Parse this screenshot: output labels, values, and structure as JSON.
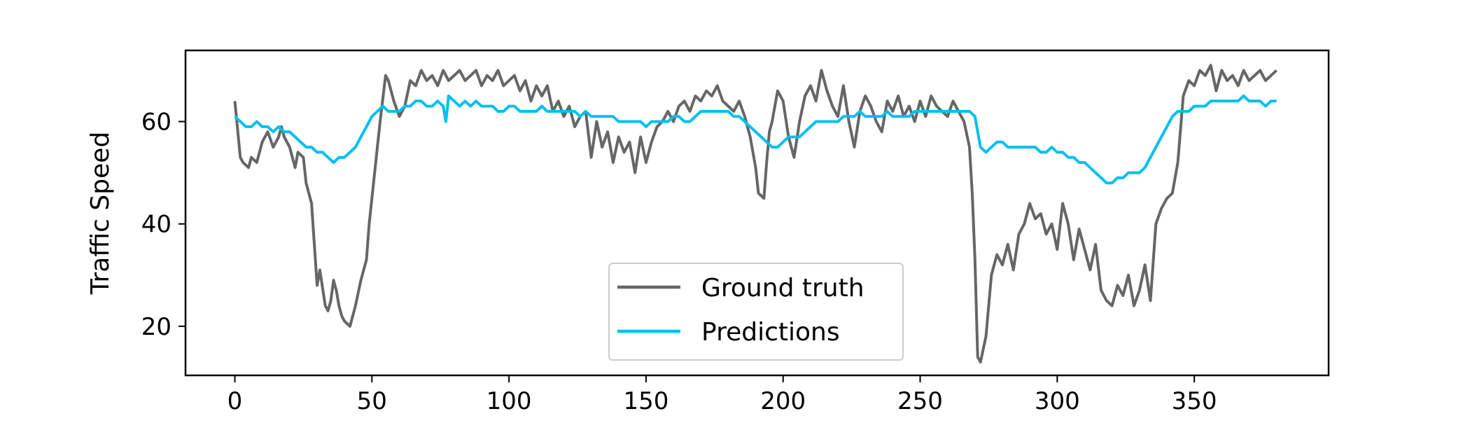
{
  "chart_data": {
    "type": "line",
    "title": "",
    "xlabel": "",
    "ylabel": "Traffic Speed",
    "xlim": [
      -18,
      399
    ],
    "ylim": [
      10.4,
      73.9
    ],
    "xticks": [
      0,
      50,
      100,
      150,
      200,
      250,
      300,
      350
    ],
    "yticks": [
      20,
      40,
      60
    ],
    "grid": false,
    "legend": {
      "placement": "lower-center"
    },
    "series": [
      {
        "name": "Ground truth",
        "color": "#666666",
        "x": [
          0,
          2,
          3,
          5,
          6,
          8,
          10,
          12,
          14,
          16,
          17,
          18,
          20,
          22,
          23,
          25,
          26,
          28,
          30,
          31,
          33,
          34,
          35,
          36,
          37,
          38,
          39,
          40,
          42,
          44,
          46,
          48,
          49,
          50,
          52,
          53,
          55,
          56,
          58,
          60,
          62,
          64,
          66,
          68,
          70,
          72,
          74,
          76,
          78,
          80,
          82,
          84,
          86,
          88,
          90,
          92,
          94,
          96,
          98,
          100,
          102,
          104,
          106,
          108,
          110,
          112,
          114,
          116,
          118,
          120,
          122,
          124,
          126,
          128,
          130,
          132,
          134,
          136,
          138,
          140,
          142,
          144,
          146,
          148,
          150,
          152,
          154,
          156,
          158,
          160,
          162,
          164,
          166,
          168,
          170,
          172,
          174,
          176,
          178,
          180,
          182,
          184,
          186,
          188,
          190,
          191,
          193,
          194,
          195,
          196,
          198,
          200,
          202,
          204,
          206,
          208,
          210,
          212,
          214,
          216,
          218,
          220,
          222,
          224,
          226,
          228,
          230,
          232,
          234,
          236,
          238,
          240,
          242,
          244,
          246,
          248,
          250,
          252,
          254,
          256,
          258,
          260,
          262,
          264,
          266,
          268,
          269,
          270,
          271,
          272,
          274,
          276,
          278,
          280,
          282,
          284,
          286,
          288,
          290,
          292,
          294,
          296,
          298,
          300,
          302,
          304,
          306,
          308,
          310,
          312,
          314,
          316,
          318,
          320,
          322,
          324,
          326,
          328,
          330,
          332,
          334,
          336,
          338,
          340,
          342,
          344,
          346,
          348,
          350,
          352,
          354,
          356,
          358,
          360,
          362,
          364,
          366,
          368,
          370,
          372,
          374,
          376,
          378,
          380
        ],
        "y": [
          64,
          53,
          52,
          51,
          53,
          52,
          56,
          58,
          55,
          57,
          59,
          57,
          55,
          51,
          54,
          53,
          48,
          44,
          28,
          31,
          24,
          23,
          25,
          29,
          27,
          24,
          22,
          21,
          20,
          24,
          29,
          33,
          40,
          45,
          55,
          60,
          69,
          68,
          64,
          61,
          63,
          68,
          67,
          70,
          68,
          69,
          67,
          70,
          68,
          69,
          70,
          68,
          69,
          70,
          67,
          69,
          68,
          70,
          67,
          68,
          69,
          66,
          68,
          64,
          67,
          65,
          67,
          62,
          64,
          61,
          63,
          59,
          61,
          62,
          53,
          60,
          55,
          58,
          52,
          57,
          54,
          56,
          50,
          57,
          52,
          56,
          59,
          60,
          62,
          60,
          63,
          64,
          62,
          65,
          64,
          66,
          65,
          67,
          64,
          63,
          62,
          64,
          61,
          57,
          51,
          46,
          45,
          52,
          58,
          60,
          66,
          64,
          57,
          53,
          60,
          65,
          67,
          64,
          70,
          66,
          63,
          61,
          67,
          60,
          55,
          62,
          65,
          63,
          60,
          58,
          64,
          62,
          65,
          61,
          63,
          60,
          64,
          61,
          65,
          63,
          62,
          61,
          64,
          62,
          60,
          55,
          46,
          33,
          14,
          13,
          18,
          30,
          34,
          32,
          36,
          31,
          38,
          40,
          44,
          41,
          42,
          38,
          40,
          35,
          44,
          40,
          33,
          39,
          35,
          31,
          36,
          27,
          25,
          24,
          28,
          26,
          30,
          24,
          27,
          32,
          25,
          40,
          43,
          45,
          46,
          52,
          65,
          68,
          67,
          70,
          69,
          71,
          66,
          70,
          68,
          69,
          67,
          70,
          68,
          69,
          70,
          68,
          69,
          70
        ]
      },
      {
        "name": "Predictions",
        "color": "#00BFEF",
        "x": [
          0,
          2,
          4,
          6,
          8,
          10,
          12,
          14,
          16,
          18,
          20,
          22,
          24,
          26,
          28,
          30,
          32,
          34,
          36,
          38,
          40,
          42,
          44,
          46,
          48,
          50,
          52,
          54,
          56,
          58,
          60,
          62,
          64,
          66,
          68,
          70,
          72,
          74,
          76,
          77,
          78,
          80,
          82,
          84,
          86,
          88,
          90,
          92,
          94,
          96,
          98,
          100,
          102,
          104,
          106,
          108,
          110,
          112,
          114,
          116,
          118,
          120,
          122,
          124,
          126,
          128,
          130,
          132,
          134,
          136,
          138,
          140,
          142,
          144,
          146,
          148,
          150,
          152,
          154,
          156,
          158,
          160,
          162,
          164,
          166,
          168,
          170,
          172,
          174,
          176,
          178,
          180,
          182,
          184,
          186,
          188,
          190,
          192,
          194,
          196,
          198,
          200,
          202,
          204,
          206,
          208,
          210,
          212,
          214,
          216,
          218,
          220,
          222,
          224,
          226,
          228,
          230,
          232,
          234,
          236,
          238,
          240,
          242,
          244,
          246,
          248,
          250,
          252,
          254,
          256,
          258,
          260,
          262,
          264,
          266,
          268,
          270,
          272,
          274,
          276,
          278,
          280,
          282,
          284,
          286,
          288,
          290,
          292,
          294,
          296,
          298,
          300,
          302,
          304,
          306,
          308,
          310,
          312,
          314,
          316,
          318,
          320,
          322,
          324,
          326,
          328,
          330,
          332,
          334,
          336,
          338,
          340,
          342,
          344,
          346,
          348,
          350,
          352,
          354,
          356,
          358,
          360,
          362,
          364,
          366,
          368,
          370,
          372,
          374,
          376,
          378,
          380
        ],
        "y": [
          61,
          60,
          59,
          59,
          60,
          59,
          59,
          58,
          59,
          58,
          58,
          57,
          56,
          55,
          55,
          54,
          54,
          53,
          52,
          53,
          53,
          54,
          55,
          57,
          59,
          61,
          62,
          63,
          62,
          62,
          62,
          63,
          63,
          64,
          64,
          63,
          63,
          64,
          63,
          60,
          65,
          64,
          63,
          64,
          63,
          64,
          63,
          63,
          63,
          62,
          62,
          63,
          63,
          62,
          62,
          62,
          62,
          63,
          62,
          62,
          62,
          62,
          62,
          62,
          61,
          62,
          61,
          61,
          61,
          61,
          61,
          60,
          60,
          60,
          60,
          60,
          59,
          60,
          60,
          60,
          60,
          61,
          61,
          60,
          60,
          61,
          62,
          62,
          62,
          62,
          62,
          62,
          61,
          61,
          60,
          59,
          58,
          57,
          56,
          55,
          55,
          56,
          57,
          57,
          57,
          58,
          59,
          60,
          60,
          60,
          60,
          60,
          61,
          61,
          61,
          62,
          61,
          61,
          61,
          61,
          62,
          61,
          61,
          61,
          61,
          62,
          62,
          62,
          62,
          62,
          62,
          62,
          62,
          62,
          62,
          62,
          61,
          55,
          54,
          55,
          56,
          56,
          55,
          55,
          55,
          55,
          55,
          55,
          54,
          54,
          55,
          54,
          54,
          53,
          53,
          52,
          52,
          51,
          50,
          49,
          48,
          48,
          49,
          49,
          50,
          50,
          50,
          51,
          53,
          55,
          57,
          59,
          61,
          62,
          62,
          62,
          63,
          63,
          63,
          64,
          64,
          64,
          64,
          64,
          64,
          65,
          64,
          64,
          64,
          63,
          64,
          64
        ]
      }
    ]
  }
}
